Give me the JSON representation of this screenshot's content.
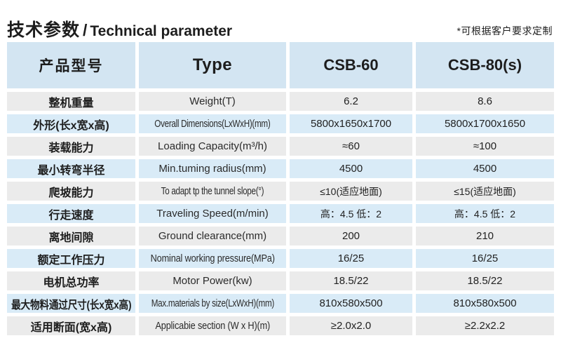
{
  "header": {
    "title_zh": "技术参数",
    "title_sep": "/",
    "title_en": "Technical parameter",
    "note": "*可根据客户要求定制"
  },
  "colors": {
    "header_blue": "#d3e5f2",
    "row_blue": "#d9ebf7",
    "row_gray": "#ebebeb",
    "text": "#1d1d1d"
  },
  "table": {
    "columns": {
      "zh": "产品型号",
      "en": "Type",
      "m1": "CSB-60",
      "m2": "CSB-80(s)"
    },
    "rows": [
      {
        "zh": "整机重量",
        "en": "Weight(T)",
        "csb60": "6.2",
        "csb80": "8.6"
      },
      {
        "zh": "外形(长x宽x高)",
        "en": "Overall Dimensions(LxWxH)(mm)",
        "csb60": "5800x1650x1700",
        "csb80": "5800x1700x1650"
      },
      {
        "zh": "装载能力",
        "en": "Loading Capacity(m³/h)",
        "csb60": "≈60",
        "csb80": "≈100"
      },
      {
        "zh": "最小转弯半径",
        "en": "Min.tuming radius(mm)",
        "csb60": "4500",
        "csb80": "4500"
      },
      {
        "zh": "爬坡能力",
        "en": "To adapt tp the tunnel slope(°)",
        "csb60": "≤10(适应地面)",
        "csb80": "≤15(适应地面)"
      },
      {
        "zh": "行走速度",
        "en": "Traveling Speed(m/min)",
        "csb60": "高：4.5 低：2",
        "csb80": "高：4.5 低：2"
      },
      {
        "zh": "离地间隙",
        "en": "Ground clearance(mm)",
        "csb60": "200",
        "csb80": "210"
      },
      {
        "zh": "额定工作压力",
        "en": "Nominal working pressure(MPa)",
        "csb60": "16/25",
        "csb80": "16/25"
      },
      {
        "zh": "电机总功率",
        "en": "Motor Power(kw)",
        "csb60": "18.5/22",
        "csb80": "18.5/22"
      },
      {
        "zh": "最大物料通过尺寸(长x宽x高)",
        "en": "Max.materials by size(LxWxH)(mm)",
        "csb60": "810x580x500",
        "csb80": "810x580x500"
      },
      {
        "zh": "适用断面(宽x高)",
        "en": "Applicabie section (W x H)(m)",
        "csb60": "≥2.0x2.0",
        "csb80": "≥2.2x2.2"
      }
    ]
  }
}
